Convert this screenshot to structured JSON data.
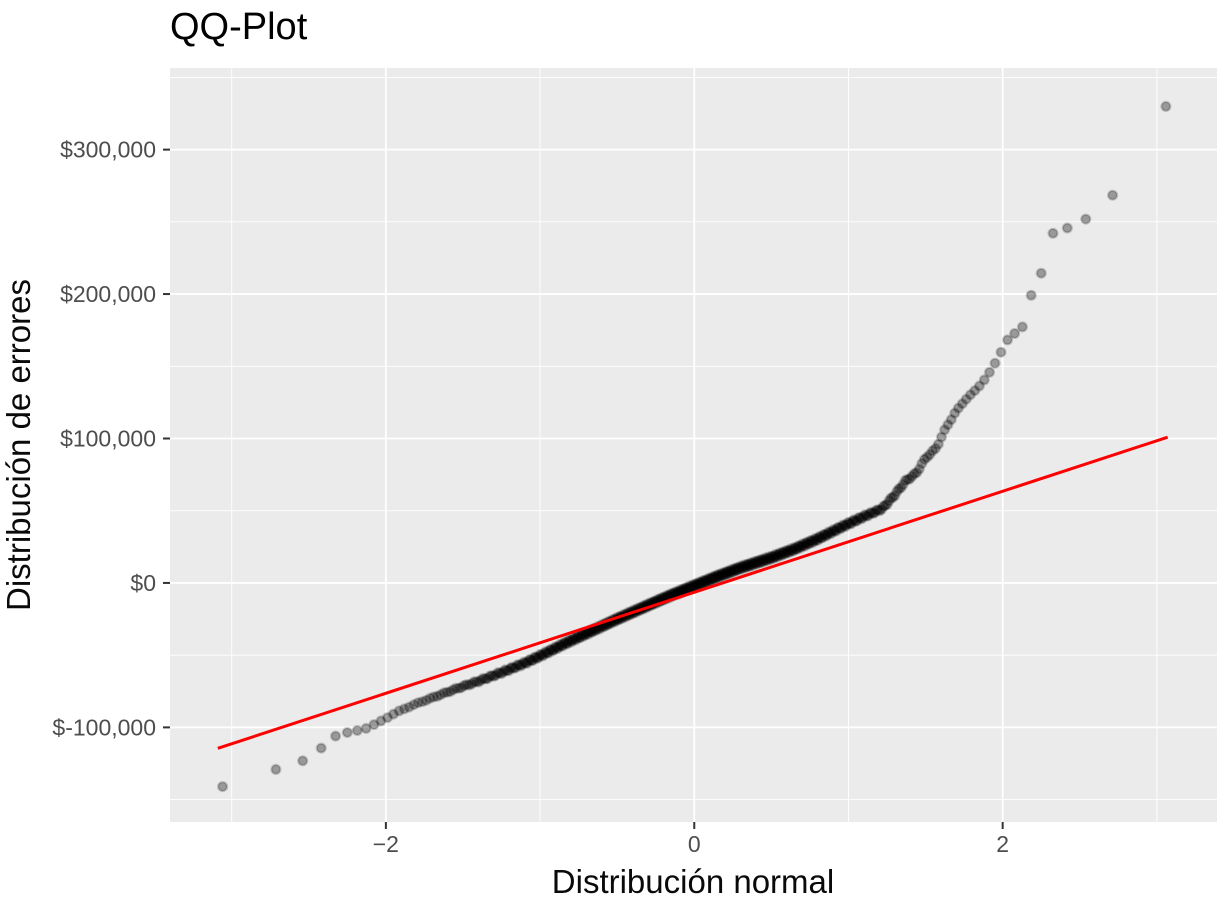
{
  "chart_data": {
    "type": "scatter",
    "title": "QQ-Plot",
    "xlabel": "Distribución normal",
    "ylabel": "Distribución de errores",
    "legend": "none",
    "grid": "on",
    "panel_bg_color": "#EBEBEB",
    "grid_color": "#FFFFFF",
    "tick_label_color": "#4D4D4D",
    "tick_mark_color": "#333333",
    "point_fill": "rgba(0,0,0,0.35)",
    "point_stroke": "rgba(0,0,0,0.18)",
    "ref_line_color": "#FF0000",
    "xlim": [
      -3.4,
      3.39
    ],
    "ylim": [
      -165500,
      356500
    ],
    "x_ticks": [
      {
        "value": -2,
        "label": "−2"
      },
      {
        "value": 0,
        "label": "0"
      },
      {
        "value": 2,
        "label": "2"
      }
    ],
    "x_minor_breaks": [
      -3,
      -1,
      1,
      3
    ],
    "y_ticks": [
      {
        "value": -100000,
        "label": "$-100,000"
      },
      {
        "value": 0,
        "label": "$0"
      },
      {
        "value": 100000,
        "label": "$100,000"
      },
      {
        "value": 200000,
        "label": "$200,000"
      },
      {
        "value": 300000,
        "label": "$300,000"
      }
    ],
    "y_minor_breaks": [
      -150000,
      -50000,
      50000,
      150000,
      250000,
      350000
    ],
    "n_points": 450,
    "qq_curve": [
      [
        -3.09,
        -142000
      ],
      [
        -2.79,
        -132000
      ],
      [
        -2.62,
        -125500
      ],
      [
        -2.5,
        -122000
      ],
      [
        -2.43,
        -115500
      ],
      [
        -2.36,
        -108000
      ],
      [
        -2.3,
        -104500
      ],
      [
        -2.22,
        -103000
      ],
      [
        -2.12,
        -100500
      ],
      [
        -2.03,
        -95500
      ],
      [
        -1.92,
        -89000
      ],
      [
        -1.8,
        -83500
      ],
      [
        -1.7,
        -79500
      ],
      [
        -1.55,
        -73500
      ],
      [
        -1.4,
        -68000
      ],
      [
        -1.25,
        -62000
      ],
      [
        -1.1,
        -55500
      ],
      [
        -1.0,
        -50500
      ],
      [
        -0.85,
        -42500
      ],
      [
        -0.7,
        -35000
      ],
      [
        -0.5,
        -25000
      ],
      [
        -0.3,
        -15500
      ],
      [
        -0.15,
        -8500
      ],
      [
        0.0,
        -2000
      ],
      [
        0.15,
        4500
      ],
      [
        0.3,
        10500
      ],
      [
        0.5,
        17500
      ],
      [
        0.65,
        23500
      ],
      [
        0.8,
        30500
      ],
      [
        0.95,
        38500
      ],
      [
        1.1,
        46000
      ],
      [
        1.22,
        51500
      ],
      [
        1.3,
        61000
      ],
      [
        1.37,
        70500
      ],
      [
        1.44,
        76000
      ],
      [
        1.5,
        86500
      ],
      [
        1.57,
        93500
      ],
      [
        1.63,
        107000
      ],
      [
        1.69,
        117500
      ],
      [
        1.75,
        126000
      ],
      [
        1.81,
        132000
      ],
      [
        1.87,
        139000
      ],
      [
        1.93,
        148000
      ],
      [
        1.99,
        160000
      ],
      [
        2.04,
        170000
      ],
      [
        2.09,
        173500
      ],
      [
        2.14,
        178500
      ],
      [
        2.19,
        201500
      ],
      [
        2.24,
        209000
      ],
      [
        2.3,
        241500
      ],
      [
        2.37,
        243000
      ],
      [
        2.45,
        247500
      ],
      [
        2.53,
        251500
      ],
      [
        2.63,
        256000
      ],
      [
        2.78,
        278500
      ],
      [
        3.07,
        332000
      ]
    ],
    "ref_line": {
      "x1": -3.09,
      "y1": -114500,
      "x2": 3.07,
      "y2": 100900
    }
  }
}
